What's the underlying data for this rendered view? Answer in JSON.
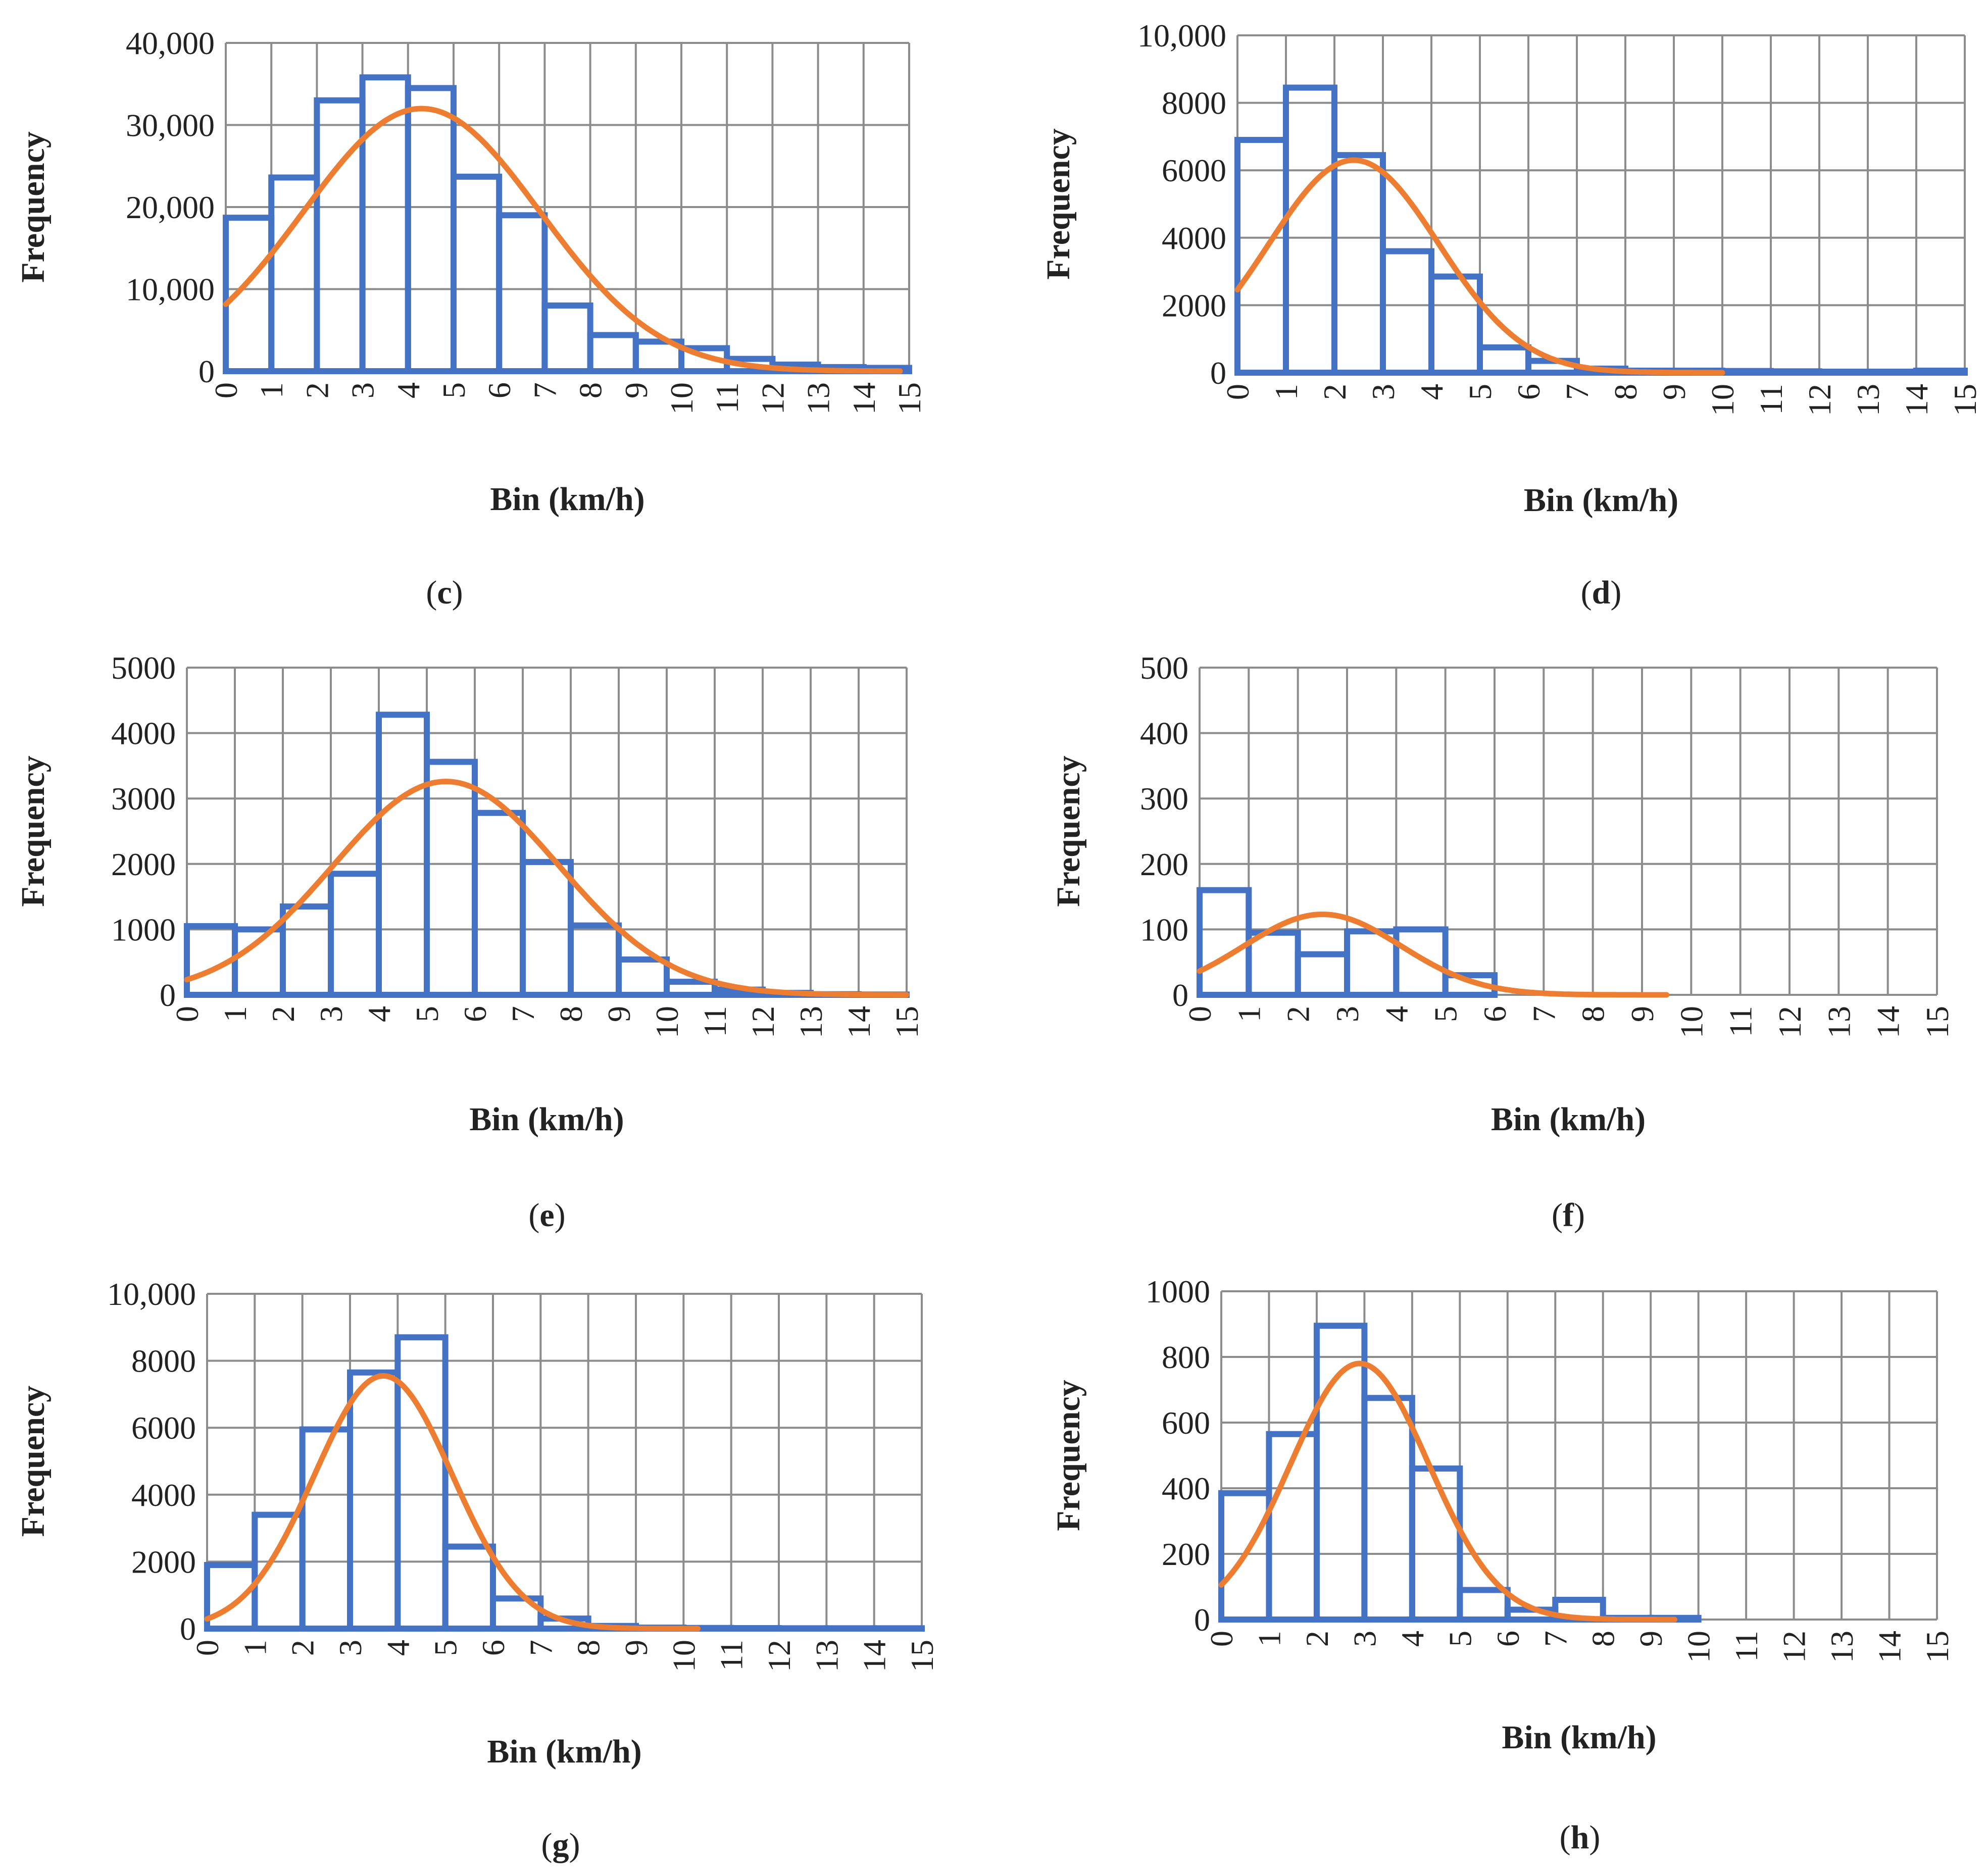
{
  "figure": {
    "colors": {
      "bars": "#4472C4",
      "fit_curve": "#ED7D31",
      "grid": "#8c8c8c",
      "text": "#222222"
    }
  },
  "chart_data": [
    {
      "id": "c",
      "label": "c",
      "type": "bar",
      "fit": "normal-curve",
      "xlabel": "Bin (km/h)",
      "ylabel": "Frequency",
      "ylim": [
        0,
        40000
      ],
      "yticks": [
        "0",
        "10,000",
        "20,000",
        "30,000",
        "40,000"
      ],
      "xticks": [
        "0",
        "1",
        "2",
        "3",
        "4",
        "5",
        "6",
        "7",
        "8",
        "9",
        "10",
        "11",
        "12",
        "13",
        "14",
        "15"
      ],
      "bins": [
        0,
        1,
        2,
        3,
        4,
        5,
        6,
        7,
        8,
        9,
        10,
        11,
        12,
        13,
        14
      ],
      "values": [
        18700,
        23600,
        33000,
        35800,
        34500,
        23700,
        19000,
        8000,
        4400,
        3600,
        2800,
        1500,
        800,
        500,
        400
      ],
      "curve": {
        "mean": 4.3,
        "sd": 2.6,
        "peak": 32000,
        "x_start": 0,
        "x_end": 14.8
      }
    },
    {
      "id": "d",
      "label": "d",
      "type": "bar",
      "fit": "normal-curve",
      "xlabel": "Bin (km/h)",
      "ylabel": "Frequency",
      "ylim": [
        0,
        10000
      ],
      "yticks": [
        "0",
        "2000",
        "4000",
        "6000",
        "8000",
        "10,000"
      ],
      "xticks": [
        "0",
        "1",
        "2",
        "3",
        "4",
        "5",
        "6",
        "7",
        "8",
        "9",
        "10",
        "11",
        "12",
        "13",
        "14",
        "15"
      ],
      "bins": [
        0,
        1,
        2,
        3,
        4,
        5,
        6,
        7,
        8,
        9,
        10,
        11,
        12,
        13,
        14
      ],
      "values": [
        6900,
        8450,
        6450,
        3600,
        2850,
        750,
        350,
        120,
        60,
        60,
        50,
        40,
        30,
        30,
        60
      ],
      "curve": {
        "mean": 2.4,
        "sd": 1.75,
        "peak": 6300,
        "x_start": 0,
        "x_end": 10.0
      }
    },
    {
      "id": "e",
      "label": "e",
      "type": "bar",
      "fit": "normal-curve",
      "xlabel": "Bin (km/h)",
      "ylabel": "Frequency",
      "ylim": [
        0,
        5000
      ],
      "yticks": [
        "0",
        "1000",
        "2000",
        "3000",
        "4000",
        "5000"
      ],
      "xticks": [
        "0",
        "1",
        "2",
        "3",
        "4",
        "5",
        "6",
        "7",
        "8",
        "9",
        "10",
        "11",
        "12",
        "13",
        "14",
        "15"
      ],
      "bins": [
        0,
        1,
        2,
        3,
        4,
        5,
        6,
        7,
        8,
        9,
        10,
        11,
        12,
        13,
        14
      ],
      "values": [
        1050,
        1000,
        1350,
        1850,
        4280,
        3560,
        2780,
        2030,
        1060,
        540,
        200,
        80,
        30,
        10,
        5
      ],
      "curve": {
        "mean": 5.4,
        "sd": 2.35,
        "peak": 3260,
        "x_start": 0,
        "x_end": 15.0
      }
    },
    {
      "id": "f",
      "label": "f",
      "type": "bar",
      "fit": "normal-curve",
      "xlabel": "Bin (km/h)",
      "ylabel": "Frequency",
      "ylim": [
        0,
        500
      ],
      "yticks": [
        "0",
        "100",
        "200",
        "300",
        "400",
        "500"
      ],
      "xticks": [
        "0",
        "1",
        "2",
        "3",
        "4",
        "5",
        "6",
        "7",
        "8",
        "9",
        "10",
        "11",
        "12",
        "13",
        "14",
        "15"
      ],
      "bins": [
        0,
        1,
        2,
        3,
        4,
        5
      ],
      "values": [
        160,
        95,
        62,
        97,
        100,
        30
      ],
      "curve": {
        "mean": 2.5,
        "sd": 1.6,
        "peak": 123,
        "x_start": 0,
        "x_end": 9.5
      }
    },
    {
      "id": "g",
      "label": "g",
      "type": "bar",
      "fit": "normal-curve",
      "xlabel": "Bin (km/h)",
      "ylabel": "Frequency",
      "ylim": [
        0,
        10000
      ],
      "yticks": [
        "0",
        "2000",
        "4000",
        "6000",
        "8000",
        "10,000"
      ],
      "xticks": [
        "0",
        "1",
        "2",
        "3",
        "4",
        "5",
        "6",
        "7",
        "8",
        "9",
        "10",
        "11",
        "12",
        "13",
        "14",
        "15"
      ],
      "bins": [
        0,
        1,
        2,
        3,
        4,
        5,
        6,
        7,
        8,
        9,
        10,
        11,
        12,
        13,
        14
      ],
      "values": [
        1900,
        3400,
        5950,
        7650,
        8700,
        2450,
        900,
        300,
        80,
        30,
        20,
        15,
        10,
        10,
        10
      ],
      "curve": {
        "mean": 3.7,
        "sd": 1.45,
        "peak": 7550,
        "x_start": 0,
        "x_end": 10.3
      }
    },
    {
      "id": "h",
      "label": "h",
      "type": "bar",
      "fit": "normal-curve",
      "xlabel": "Bin (km/h)",
      "ylabel": "Frequency",
      "ylim": [
        0,
        1000
      ],
      "yticks": [
        "0",
        "200",
        "400",
        "600",
        "800",
        "1000"
      ],
      "xticks": [
        "0",
        "1",
        "2",
        "3",
        "4",
        "5",
        "6",
        "7",
        "8",
        "9",
        "10",
        "11",
        "12",
        "13",
        "14",
        "15"
      ],
      "bins": [
        0,
        1,
        2,
        3,
        4,
        5,
        6,
        7,
        8,
        9
      ],
      "values": [
        385,
        565,
        895,
        675,
        460,
        90,
        30,
        60,
        5,
        5
      ],
      "curve": {
        "mean": 2.9,
        "sd": 1.45,
        "peak": 780,
        "x_start": 0,
        "x_end": 9.5
      }
    }
  ]
}
